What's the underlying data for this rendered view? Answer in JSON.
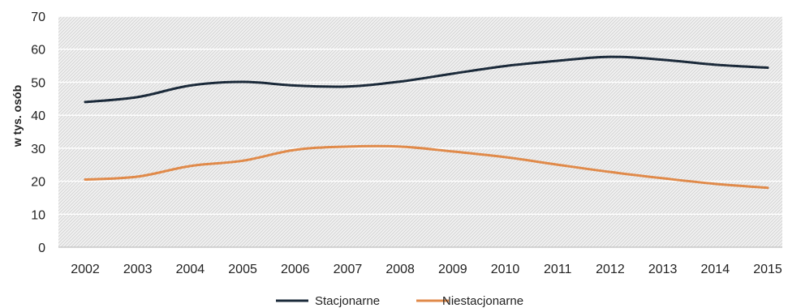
{
  "chart_data": {
    "type": "line",
    "title": "",
    "xlabel": "",
    "ylabel": "w tys. osób",
    "ylim": [
      0,
      70
    ],
    "yticks": [
      0,
      10,
      20,
      30,
      40,
      50,
      60,
      70
    ],
    "categories": [
      "2002",
      "2003",
      "2004",
      "2005",
      "2006",
      "2007",
      "2008",
      "2009",
      "2010",
      "2011",
      "2012",
      "2013",
      "2014",
      "2015"
    ],
    "series": [
      {
        "name": "Stacjonarne",
        "color": "#1b2a3a",
        "values": [
          44.0,
          45.5,
          49.0,
          50.1,
          49.0,
          48.7,
          50.2,
          52.6,
          54.9,
          56.5,
          57.7,
          56.8,
          55.3,
          54.4
        ]
      },
      {
        "name": "Niestacjonarne",
        "color": "#e08a4a",
        "values": [
          20.5,
          21.4,
          24.6,
          26.2,
          29.5,
          30.5,
          30.5,
          29.0,
          27.3,
          25.0,
          22.8,
          20.9,
          19.2,
          18.0
        ]
      }
    ],
    "grid": true,
    "legend_position": "bottom-center"
  }
}
